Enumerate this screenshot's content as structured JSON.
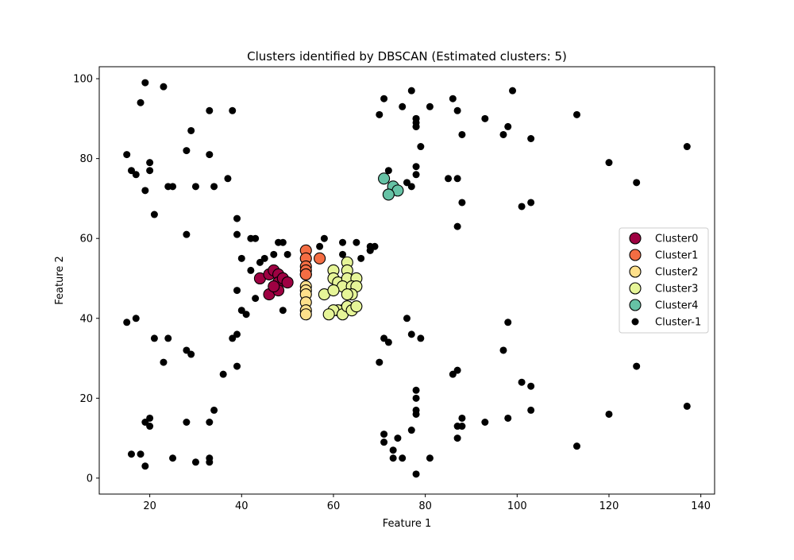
{
  "chart_data": {
    "type": "scatter",
    "title": "Clusters identified by DBSCAN (Estimated clusters: 5)",
    "xlabel": "Feature 1",
    "ylabel": "Feature 2",
    "xlim": [
      9,
      143
    ],
    "ylim": [
      -4,
      103
    ],
    "xticks": [
      20,
      40,
      60,
      80,
      100,
      120,
      140
    ],
    "yticks": [
      0,
      20,
      40,
      60,
      80,
      100
    ],
    "grid": false,
    "legend_position": "right",
    "series": [
      {
        "name": "Cluster0",
        "color": "#9e0142",
        "marker": "large-circle",
        "x": [
          44,
          46,
          47,
          48,
          48,
          49,
          50,
          46,
          48,
          47
        ],
        "y": [
          50,
          51,
          52,
          51,
          49,
          50,
          49,
          46,
          47,
          48
        ]
      },
      {
        "name": "Cluster1",
        "color": "#f46d43",
        "marker": "large-circle",
        "x": [
          54,
          54,
          54,
          57,
          54,
          54,
          54
        ],
        "y": [
          57,
          55,
          53,
          55,
          52,
          51,
          51
        ]
      },
      {
        "name": "Cluster2",
        "color": "#fee08b",
        "marker": "large-circle",
        "x": [
          54,
          54,
          54,
          54,
          54,
          54
        ],
        "y": [
          48,
          47,
          46,
          44,
          42,
          41
        ]
      },
      {
        "name": "Cluster3",
        "color": "#e6f598",
        "marker": "large-circle",
        "x": [
          63,
          63,
          60,
          60,
          61,
          63,
          65,
          62,
          64,
          65,
          58,
          60,
          64,
          63,
          62,
          61,
          60,
          59,
          62,
          63,
          64,
          65
        ],
        "y": [
          54,
          52,
          52,
          50,
          49,
          50,
          50,
          48,
          48,
          48,
          46,
          47,
          46,
          46,
          42,
          42,
          42,
          41,
          41,
          43,
          42,
          43
        ]
      },
      {
        "name": "Cluster4",
        "color": "#66c2a5",
        "marker": "large-circle",
        "x": [
          71,
          73,
          74,
          72
        ],
        "y": [
          75,
          73,
          72,
          71
        ]
      },
      {
        "name": "Cluster-1",
        "color": "#000000",
        "marker": "small-circle",
        "x": [
          19,
          23,
          18,
          29,
          33,
          38,
          15,
          28,
          33,
          20,
          16,
          17,
          20,
          19,
          24,
          25,
          30,
          34,
          37,
          21,
          28,
          39,
          39,
          42,
          43,
          40,
          42,
          45,
          47,
          48,
          49,
          50,
          44,
          43,
          39,
          40,
          41,
          49,
          15,
          17,
          21,
          24,
          39,
          23,
          29,
          28,
          38,
          36,
          39,
          33,
          34,
          20,
          19,
          20,
          28,
          33,
          16,
          18,
          19,
          25,
          30,
          33,
          58,
          57,
          62,
          62,
          65,
          68,
          69,
          68,
          66,
          68,
          71,
          77,
          75,
          78,
          78,
          78,
          78,
          81,
          86,
          87,
          88,
          93,
          99,
          98,
          97,
          103,
          79,
          72,
          76,
          70,
          78,
          78,
          77,
          78,
          85,
          87,
          88,
          87,
          103,
          101,
          113,
          120,
          126,
          137,
          98,
          76,
          77,
          79,
          71,
          72,
          70,
          97,
          86,
          87,
          101,
          103,
          126,
          120,
          137,
          113,
          103,
          98,
          93,
          78,
          78,
          78,
          78,
          88,
          87,
          88,
          87,
          71,
          71,
          73,
          73,
          74,
          75,
          77,
          78,
          81
        ],
        "y": [
          99,
          98,
          94,
          87,
          92,
          92,
          81,
          82,
          81,
          79,
          77,
          76,
          77,
          72,
          73,
          73,
          73,
          73,
          75,
          66,
          61,
          65,
          61,
          60,
          60,
          55,
          52,
          55,
          56,
          59,
          59,
          56,
          54,
          45,
          47,
          42,
          41,
          42,
          39,
          40,
          35,
          35,
          36,
          29,
          31,
          32,
          35,
          26,
          28,
          14,
          17,
          15,
          14,
          13,
          14,
          4,
          6,
          6,
          3,
          5,
          4,
          5,
          60,
          58,
          59,
          56,
          59,
          58,
          58,
          57,
          55,
          57,
          95,
          97,
          93,
          90,
          89,
          88,
          90,
          93,
          95,
          92,
          86,
          90,
          97,
          88,
          86,
          85,
          83,
          77,
          74,
          91,
          78,
          76,
          73,
          88,
          75,
          75,
          69,
          63,
          69,
          68,
          91,
          79,
          74,
          83,
          39,
          40,
          36,
          35,
          35,
          34,
          29,
          32,
          26,
          27,
          24,
          23,
          28,
          16,
          18,
          8,
          17,
          15,
          14,
          22,
          20,
          17,
          16,
          15,
          13,
          13,
          10,
          11,
          9,
          7,
          5,
          10,
          5,
          12,
          1,
          5
        ]
      }
    ]
  }
}
